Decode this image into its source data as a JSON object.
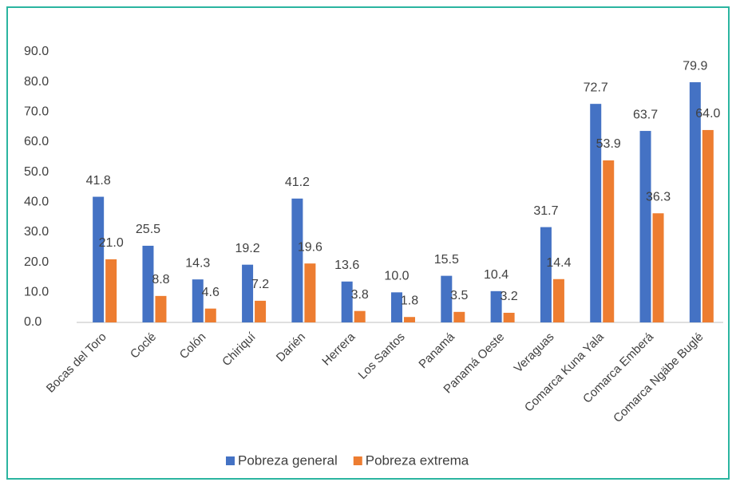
{
  "chart_data": {
    "type": "bar",
    "categories": [
      "Bocas del Toro",
      "Coclé",
      "Colón",
      "Chiriquí",
      "Darién",
      "Herrera",
      "Los Santos",
      "Panamá",
      "Panamá Oeste",
      "Veraguas",
      "Comarca Kuna Yala",
      "Comarca Emberá",
      "Comarca Ngäbe Buglé"
    ],
    "series": [
      {
        "name": "Pobreza general",
        "color": "#4472c4",
        "values": [
          41.8,
          25.5,
          14.3,
          19.2,
          41.2,
          13.6,
          10.0,
          15.5,
          10.4,
          31.7,
          72.7,
          63.7,
          79.9
        ],
        "value_labels": [
          "41.8",
          "25.5",
          "14.3",
          "19.2",
          "41.2",
          "13.6",
          "10.0",
          "15.5",
          "10.4",
          "31.7",
          "72.7",
          "63.7",
          "79.9"
        ]
      },
      {
        "name": "Pobreza extrema",
        "color": "#ed7d31",
        "values": [
          21.0,
          8.8,
          4.6,
          7.2,
          19.6,
          3.8,
          1.8,
          3.5,
          3.2,
          14.4,
          53.9,
          36.3,
          64.0
        ],
        "value_labels": [
          "21.0",
          "8.8",
          "4.6",
          "7.2",
          "19.6",
          "3.8",
          "1.8",
          "3.5",
          "3.2",
          "14.4",
          "53.9",
          "36.3",
          "64.0"
        ]
      }
    ],
    "ylim": [
      0,
      90
    ],
    "yticks": [
      {
        "value": 0,
        "label": "0.0"
      },
      {
        "value": 10,
        "label": "10.0"
      },
      {
        "value": 20,
        "label": "20.0"
      },
      {
        "value": 30,
        "label": "30.0"
      },
      {
        "value": 40,
        "label": "40.0"
      },
      {
        "value": 50,
        "label": "50.0"
      },
      {
        "value": 60,
        "label": "60.0"
      },
      {
        "value": 70,
        "label": "70.0"
      },
      {
        "value": 80,
        "label": "80.0"
      },
      {
        "value": 90,
        "label": "90.0"
      }
    ],
    "grid": false,
    "legend": "bottom"
  }
}
